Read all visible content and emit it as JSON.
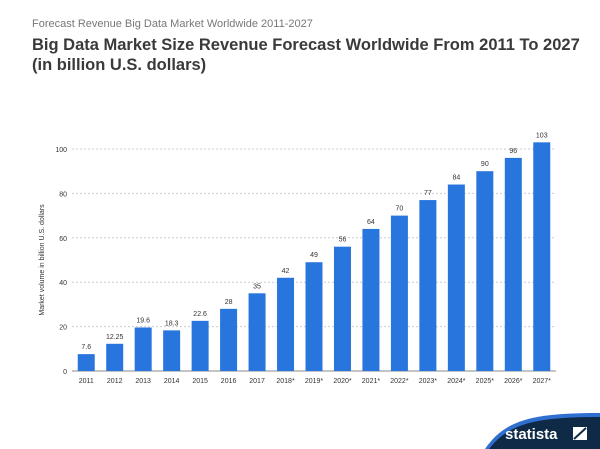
{
  "header": {
    "subtitle": "Forecast Revenue Big Data Market Worldwide 2011-2027",
    "title_line1": "Big Data Market Size Revenue Forecast Worldwide From 2011 To 2027",
    "title_line2": "(in billion U.S. dollars)"
  },
  "logo": {
    "text": "statista"
  },
  "chart_data": {
    "type": "bar",
    "categories": [
      "2011",
      "2012",
      "2013",
      "2014",
      "2015",
      "2016",
      "2017",
      "2018*",
      "2019*",
      "2020*",
      "2021*",
      "2022*",
      "2023*",
      "2024*",
      "2025*",
      "2026*",
      "2027*"
    ],
    "values": [
      7.6,
      12.25,
      19.6,
      18.3,
      22.6,
      28,
      35,
      42,
      49,
      56,
      64,
      70,
      77,
      84,
      90,
      96,
      103
    ],
    "data_labels": [
      "7.6",
      "12.25",
      "19.6",
      "18.3",
      "22.6",
      "28",
      "35",
      "42",
      "49",
      "56",
      "64",
      "70",
      "77",
      "84",
      "90",
      "96",
      "103"
    ],
    "ylabel": "Market volume in billion U.S. dollars",
    "xlabel": "",
    "ylim": [
      0,
      100
    ],
    "yticks": [
      0,
      20,
      40,
      60,
      80,
      100
    ],
    "grid": true,
    "bar_color": "#2876dd"
  }
}
